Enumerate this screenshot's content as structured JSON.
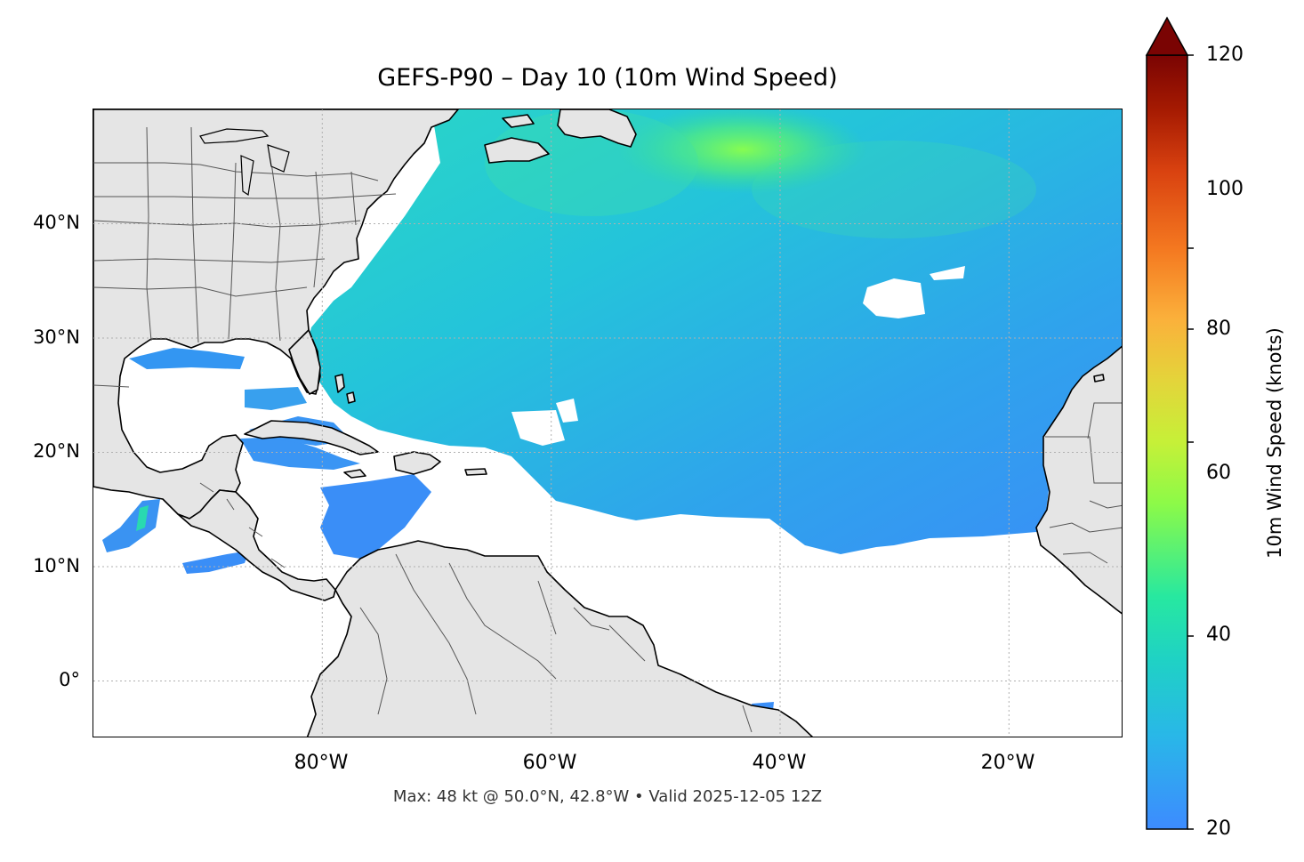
{
  "title": "GEFS-P90 – Day 10 (10m Wind Speed)",
  "footnote": "Max: 48 kt @ 50.0°N, 42.8°W • Valid 2025-12-05 12Z",
  "map": {
    "lat_labels": [
      "40°N",
      "30°N",
      "20°N",
      "10°N",
      "0°"
    ],
    "lon_labels": [
      "80°W",
      "60°W",
      "40°W",
      "20°W"
    ],
    "extent": {
      "lon_min": -100,
      "lon_max": -10,
      "lat_min": -5,
      "lat_max": 50
    },
    "colors": {
      "land": "#e5e5e5",
      "coast": "#000000",
      "border": "#555555",
      "grid": "#b0b0b0"
    }
  },
  "colorbar": {
    "label": "10m Wind Speed (knots)",
    "ticks": [
      "20",
      "40",
      "60",
      "80",
      "100",
      "120"
    ],
    "min": 20,
    "max": 120,
    "extend": "max",
    "colors": [
      "#3d8bff",
      "#1fc7d6",
      "#27e8a0",
      "#a4ff3a",
      "#d8dd3a",
      "#fbb03b",
      "#f47820",
      "#d94210",
      "#a51a02",
      "#7a0403"
    ]
  },
  "chart_data": {
    "type": "heatmap",
    "title": "GEFS-P90 – Day 10 (10m Wind Speed)",
    "colorbar_label": "10m Wind Speed (knots)",
    "value_range": [
      20,
      120
    ],
    "max_value": 48,
    "max_location": "50.0°N, 42.8°W",
    "valid_time": "2025-12-05 12Z"
  }
}
